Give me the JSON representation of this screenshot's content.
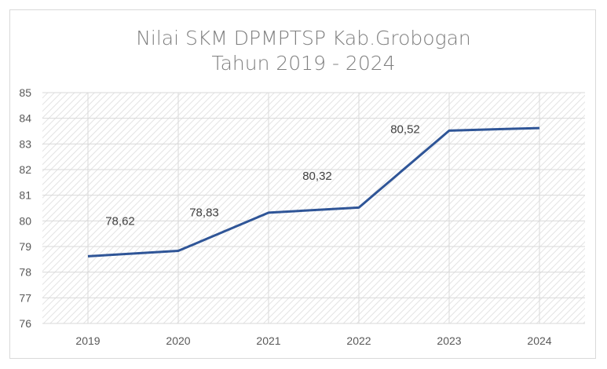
{
  "chart_data": {
    "type": "line",
    "title": [
      "Nilai SKM DPMPTSP Kab.Grobogan",
      "Tahun 2019 - 2024"
    ],
    "categories": [
      "2019",
      "2020",
      "2021",
      "2022",
      "2023",
      "2024"
    ],
    "series": [
      {
        "values": [
          78.62,
          78.83,
          80.32,
          80.52,
          83.52,
          83.62
        ],
        "color": "#2f5597"
      }
    ],
    "data_labels": [
      "78,62",
      "78,83",
      "80,32",
      "80,52",
      null,
      null
    ],
    "ylim": [
      76,
      85
    ],
    "yticks": [
      "76",
      "77",
      "78",
      "79",
      "80",
      "81",
      "82",
      "83",
      "84",
      "85"
    ],
    "grid": true,
    "legend": "none",
    "plot_background": "diagonal hatch"
  }
}
